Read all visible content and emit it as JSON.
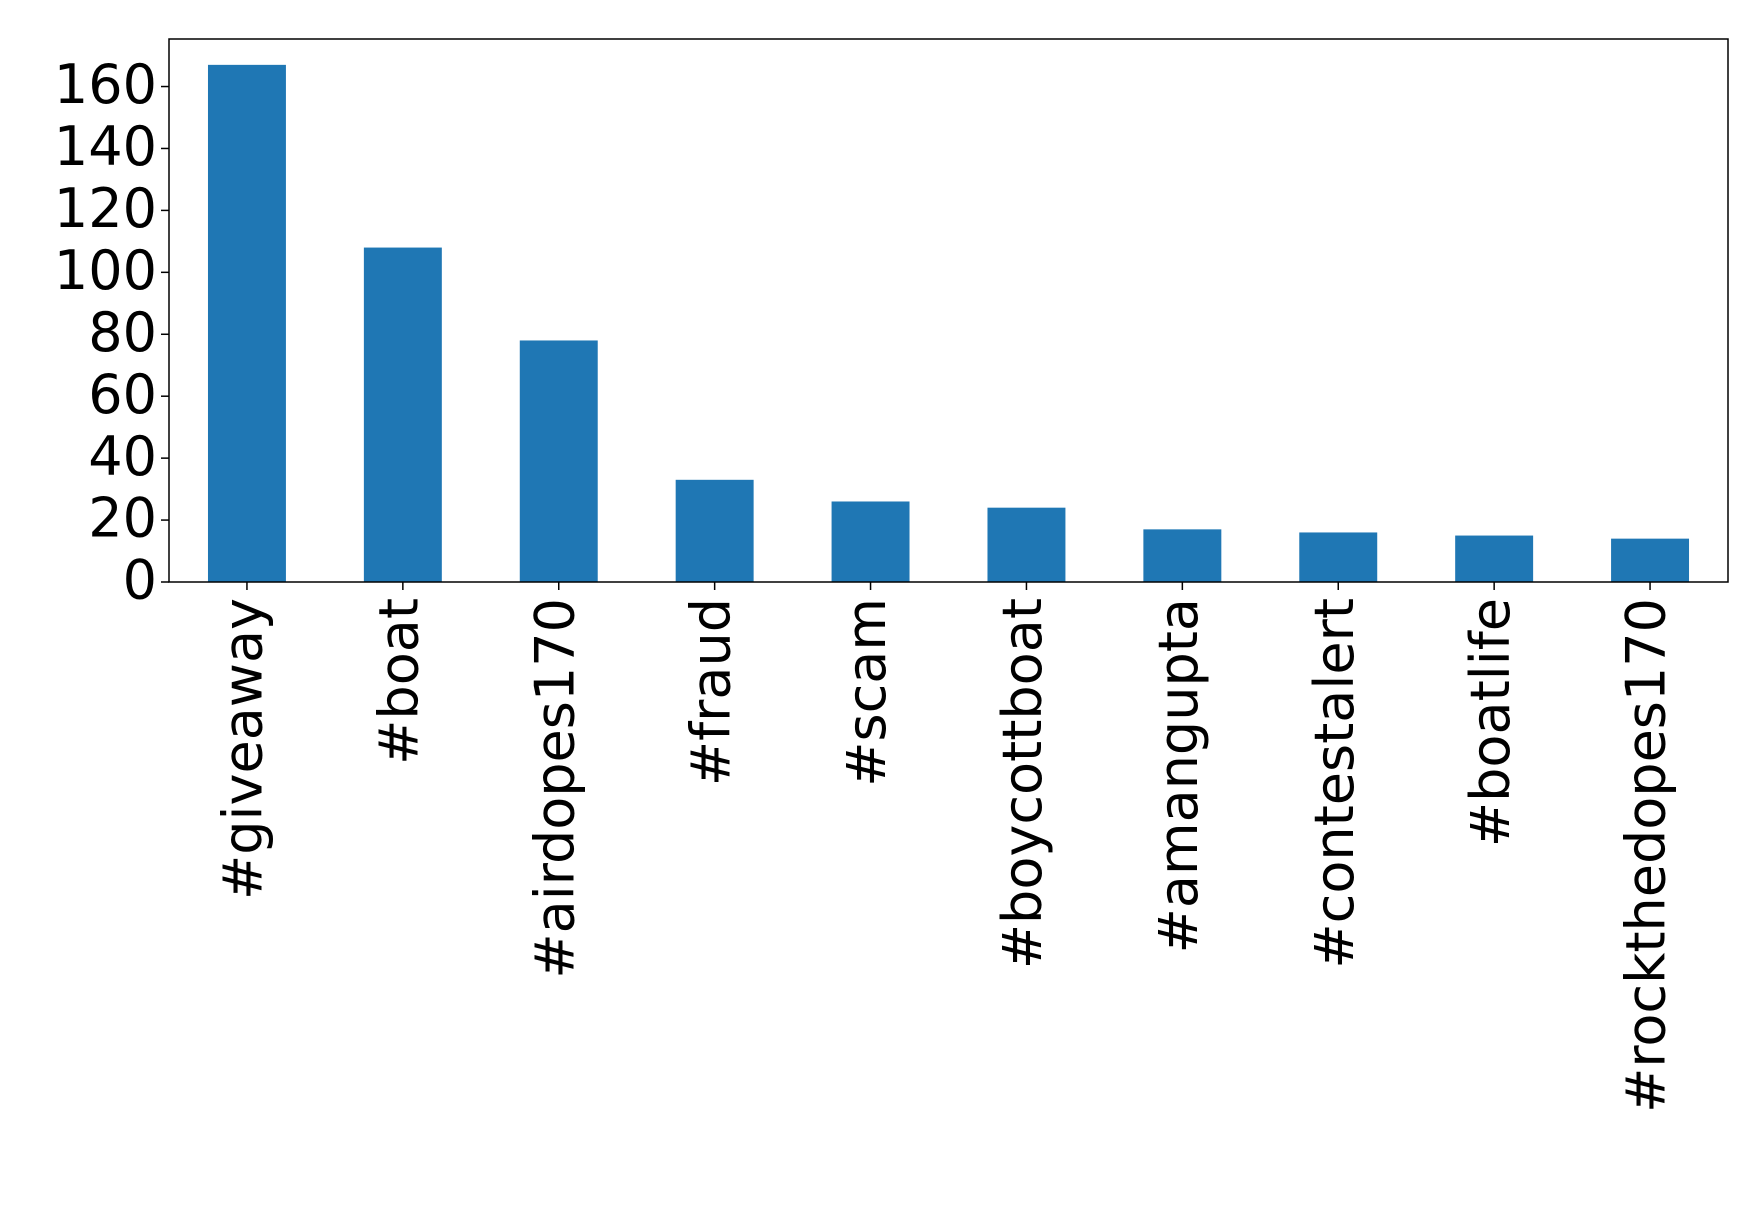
{
  "chart_data": {
    "type": "bar",
    "categories": [
      "#giveaway",
      "#boat",
      "#airdopes170",
      "#fraud",
      "#scam",
      "#boycottboat",
      "#amangupta",
      "#contestalert",
      "#boatlife",
      "#rockthedopes170"
    ],
    "values": [
      167,
      108,
      78,
      33,
      26,
      24,
      17,
      16,
      15,
      14
    ],
    "color": "#1f77b4",
    "ylim": [
      0,
      175.35
    ],
    "yticks": [
      0,
      20,
      40,
      60,
      80,
      100,
      120,
      140,
      160
    ],
    "grid": false
  }
}
